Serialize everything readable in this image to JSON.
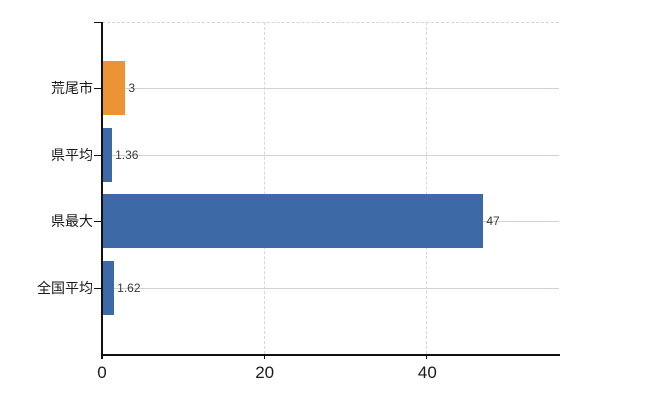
{
  "chart_data": {
    "type": "bar",
    "orientation": "horizontal",
    "title": "",
    "xlabel": "",
    "ylabel": "",
    "categories": [
      "荒尾市",
      "県平均",
      "県最大",
      "全国平均"
    ],
    "values": [
      3,
      1.36,
      47,
      1.62
    ],
    "value_labels": [
      "3",
      "1.36",
      "47",
      "1.62"
    ],
    "series": [
      {
        "name": "",
        "values": [
          3,
          1.36,
          47,
          1.62
        ]
      }
    ],
    "bar_colors": [
      "#ec9336",
      "#3d6aa7",
      "#3d6aa7",
      "#3d6aa7"
    ],
    "xlim": [
      0,
      56.3
    ],
    "xticks": [
      {
        "value": 0,
        "label": "0"
      },
      {
        "value": 20,
        "label": "20"
      },
      {
        "value": 40,
        "label": "40"
      }
    ],
    "grid": true,
    "legend": false
  },
  "colors": {
    "highlight_bar": "#ec9336",
    "default_bar": "#3d6aa7",
    "axis": "#111111",
    "grid_horizontal": "#ccd4cb",
    "grid_vertical": "#d7d7d7",
    "top_border": "#d4d4d4",
    "background": "#ffffff"
  }
}
